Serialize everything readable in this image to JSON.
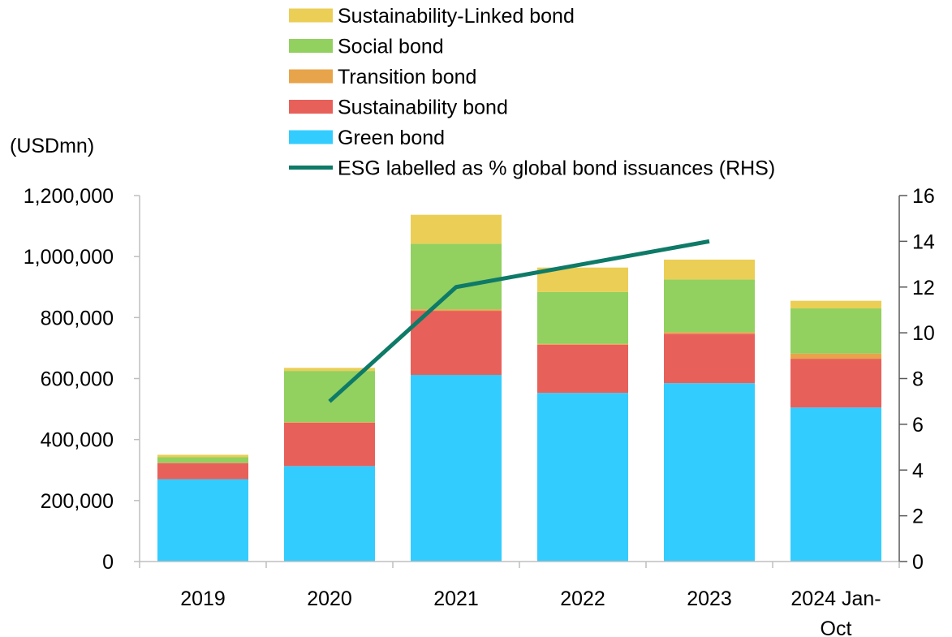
{
  "chart_data": {
    "type": "bar",
    "stacked": true,
    "left_axis_unit": "(USDmn)",
    "categories": [
      "2019",
      "2020",
      "2021",
      "2022",
      "2023",
      "2024 Jan-Oct"
    ],
    "category_lines": [
      [
        "2019"
      ],
      [
        "2020"
      ],
      [
        "2021"
      ],
      [
        "2022"
      ],
      [
        "2023"
      ],
      [
        "2024 Jan-",
        "Oct"
      ]
    ],
    "series": [
      {
        "name": "Green bond",
        "color": "#33CCFF",
        "values": [
          270000,
          313000,
          612000,
          553000,
          585000,
          505000
        ]
      },
      {
        "name": "Sustainability bond",
        "color": "#E8605A",
        "values": [
          53000,
          142000,
          210000,
          158000,
          162000,
          160000
        ]
      },
      {
        "name": "Transition bond",
        "color": "#E8A44A",
        "values": [
          1000,
          2000,
          5000,
          3000,
          5000,
          17000
        ]
      },
      {
        "name": "Social bond",
        "color": "#92D060",
        "values": [
          18000,
          168000,
          215000,
          170000,
          173000,
          148000
        ]
      },
      {
        "name": "Sustainability-Linked bond",
        "color": "#EBCE55",
        "values": [
          8000,
          10000,
          95000,
          80000,
          65000,
          25000
        ]
      }
    ],
    "line_series": {
      "name": "ESG labelled as % global bond issuances (RHS)",
      "color": "#0E7A68",
      "axis": "right",
      "values": [
        null,
        7,
        12,
        13,
        14,
        null
      ]
    },
    "left_axis": {
      "ylim": [
        0,
        1200000
      ],
      "ticks": [
        "0",
        "200,000",
        "400,000",
        "600,000",
        "800,000",
        "1,000,000",
        "1,200,000"
      ]
    },
    "right_axis": {
      "ylim": [
        0,
        16
      ],
      "ticks": [
        "0",
        "2",
        "4",
        "6",
        "8",
        "10",
        "12",
        "14",
        "16"
      ]
    },
    "legend": {
      "position": "top",
      "entries": [
        {
          "label": "Sustainability-Linked bond",
          "color": "#EBCE55",
          "kind": "box"
        },
        {
          "label": "Social bond",
          "color": "#92D060",
          "kind": "box"
        },
        {
          "label": "Transition bond",
          "color": "#E8A44A",
          "kind": "box"
        },
        {
          "label": "Sustainability bond",
          "color": "#E8605A",
          "kind": "box"
        },
        {
          "label": "Green bond",
          "color": "#33CCFF",
          "kind": "box"
        },
        {
          "label": "ESG labelled as % global bond issuances (RHS)",
          "color": "#0E7A68",
          "kind": "line"
        }
      ]
    },
    "grid": false
  }
}
